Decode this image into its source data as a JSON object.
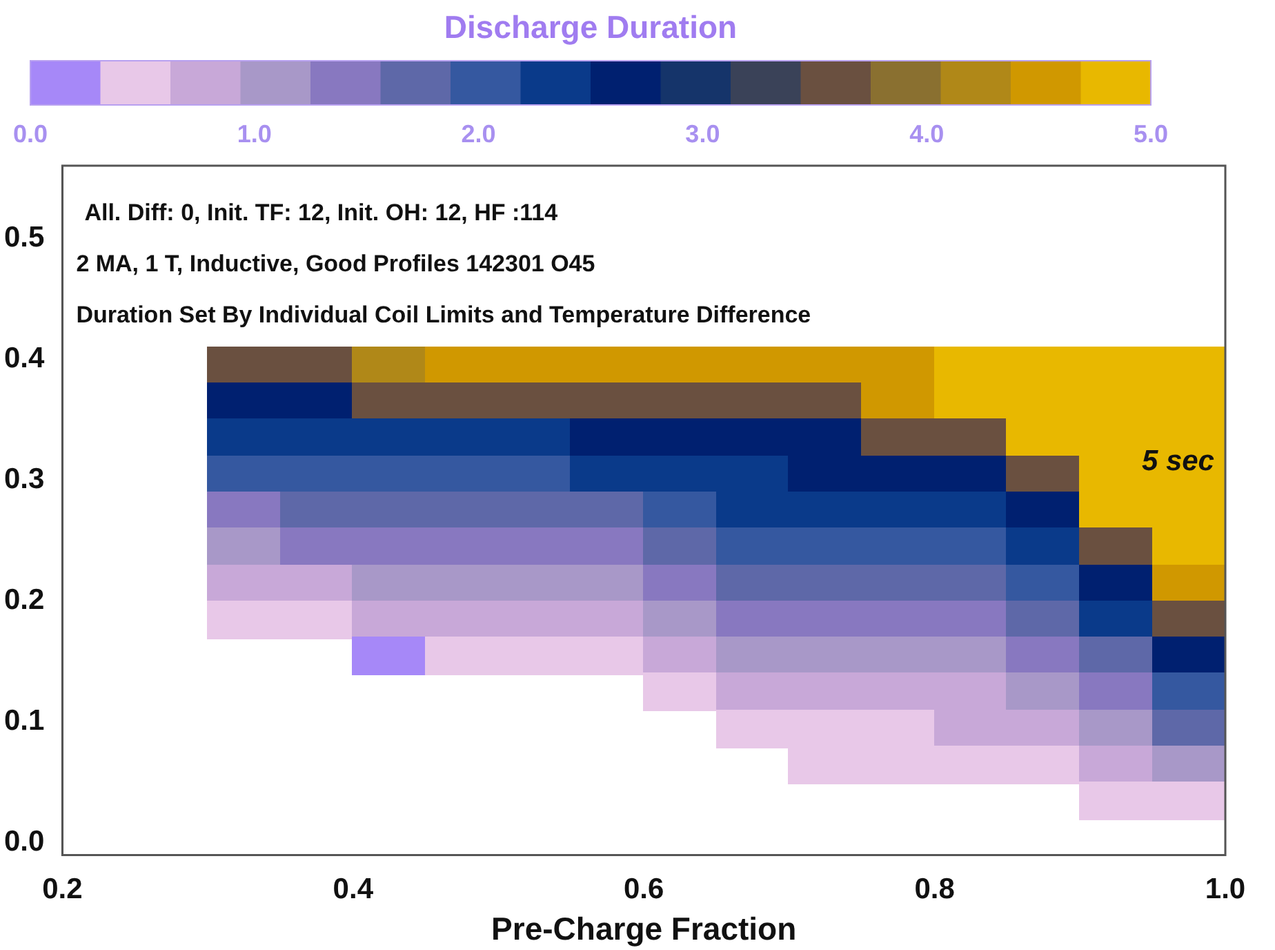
{
  "chart_data": {
    "type": "heatmap",
    "clabel": "Discharge Duration",
    "xlabel": "Pre-Charge Fraction",
    "x": [
      0.325,
      0.375,
      0.425,
      0.475,
      0.525,
      0.575,
      0.625,
      0.675,
      0.725,
      0.775,
      0.825,
      0.875,
      0.925,
      0.975
    ],
    "y": [
      0.395,
      0.365,
      0.335,
      0.305,
      0.275,
      0.245,
      0.215,
      0.185,
      0.155,
      0.125,
      0.095,
      0.065,
      0.035
    ],
    "xlim": [
      0.2,
      1.0
    ],
    "xticks": [
      0.2,
      0.4,
      0.6,
      0.8,
      {
        "value": 1.0,
        "label": "1.0"
      }
    ],
    "ylim": [
      -0.01,
      0.56
    ],
    "yticks": [
      {
        "value": 0,
        "label": "0.0"
      },
      0.1,
      0.2,
      0.3,
      0.4,
      0.5
    ],
    "clim": [
      0,
      5
    ],
    "cticks": [
      {
        "value": 0,
        "label": "0.0"
      },
      {
        "value": 1,
        "label": "1.0"
      },
      {
        "value": 2,
        "label": "2.0"
      },
      {
        "value": 3,
        "label": "3.0"
      },
      {
        "value": 4,
        "label": "4.0"
      },
      {
        "value": 5,
        "label": "5.0"
      }
    ],
    "cells": [
      [
        3.5,
        3.5,
        4.3,
        4.4,
        4.4,
        4.4,
        4.5,
        4.5,
        4.6,
        4.6,
        4.7,
        4.8,
        4.9,
        5.0
      ],
      [
        2.5,
        2.6,
        3.5,
        3.5,
        3.5,
        3.5,
        3.5,
        3.5,
        3.5,
        4.6,
        4.7,
        4.8,
        4.9,
        5.0
      ],
      [
        2.2,
        2.3,
        2.4,
        2.4,
        2.4,
        2.5,
        2.7,
        2.7,
        2.8,
        3.5,
        3.5,
        4.7,
        4.8,
        5.0
      ],
      [
        1.9,
        1.9,
        2.1,
        2.1,
        2.1,
        2.2,
        2.3,
        2.4,
        2.5,
        2.6,
        2.7,
        3.5,
        4.8,
        4.9
      ],
      [
        1.5,
        1.6,
        1.7,
        1.7,
        1.8,
        1.8,
        2.0,
        2.2,
        2.2,
        2.3,
        2.4,
        2.6,
        4.7,
        4.9
      ],
      [
        1.2,
        1.3,
        1.4,
        1.4,
        1.4,
        1.5,
        1.7,
        1.9,
        2.0,
        2.0,
        2.1,
        2.3,
        3.5,
        4.8
      ],
      [
        0.9,
        0.9,
        1.0,
        1.0,
        1.1,
        1.2,
        1.4,
        1.6,
        1.7,
        1.7,
        1.8,
        2.0,
        2.5,
        4.6
      ],
      [
        0.5,
        0.6,
        0.7,
        0.7,
        0.8,
        0.9,
        1.1,
        1.3,
        1.4,
        1.5,
        1.5,
        1.7,
        2.2,
        3.5
      ],
      [
        null,
        null,
        0.3,
        0.4,
        0.4,
        0.5,
        0.8,
        1.0,
        1.1,
        1.2,
        1.2,
        1.4,
        1.8,
        2.6
      ],
      [
        null,
        null,
        null,
        null,
        null,
        null,
        0.5,
        0.8,
        0.9,
        0.9,
        0.9,
        1.1,
        1.5,
        2.1
      ],
      [
        null,
        null,
        null,
        null,
        null,
        null,
        null,
        0.5,
        0.6,
        0.6,
        0.7,
        0.8,
        1.1,
        1.6
      ],
      [
        null,
        null,
        null,
        null,
        null,
        null,
        null,
        null,
        0.4,
        0.4,
        0.4,
        0.5,
        0.8,
        1.1
      ],
      [
        null,
        null,
        null,
        null,
        null,
        null,
        null,
        null,
        null,
        null,
        null,
        null,
        0.4,
        0.6
      ]
    ],
    "annotations": [
      "All. Diff: 0, Init. TF: 12, Init. OH: 12, HF :114",
      "2 MA, 1 T, Inductive, Good Profiles 142301 O45",
      "Duration Set By Individual Coil Limits and Temperature Difference",
      "5 sec"
    ]
  }
}
